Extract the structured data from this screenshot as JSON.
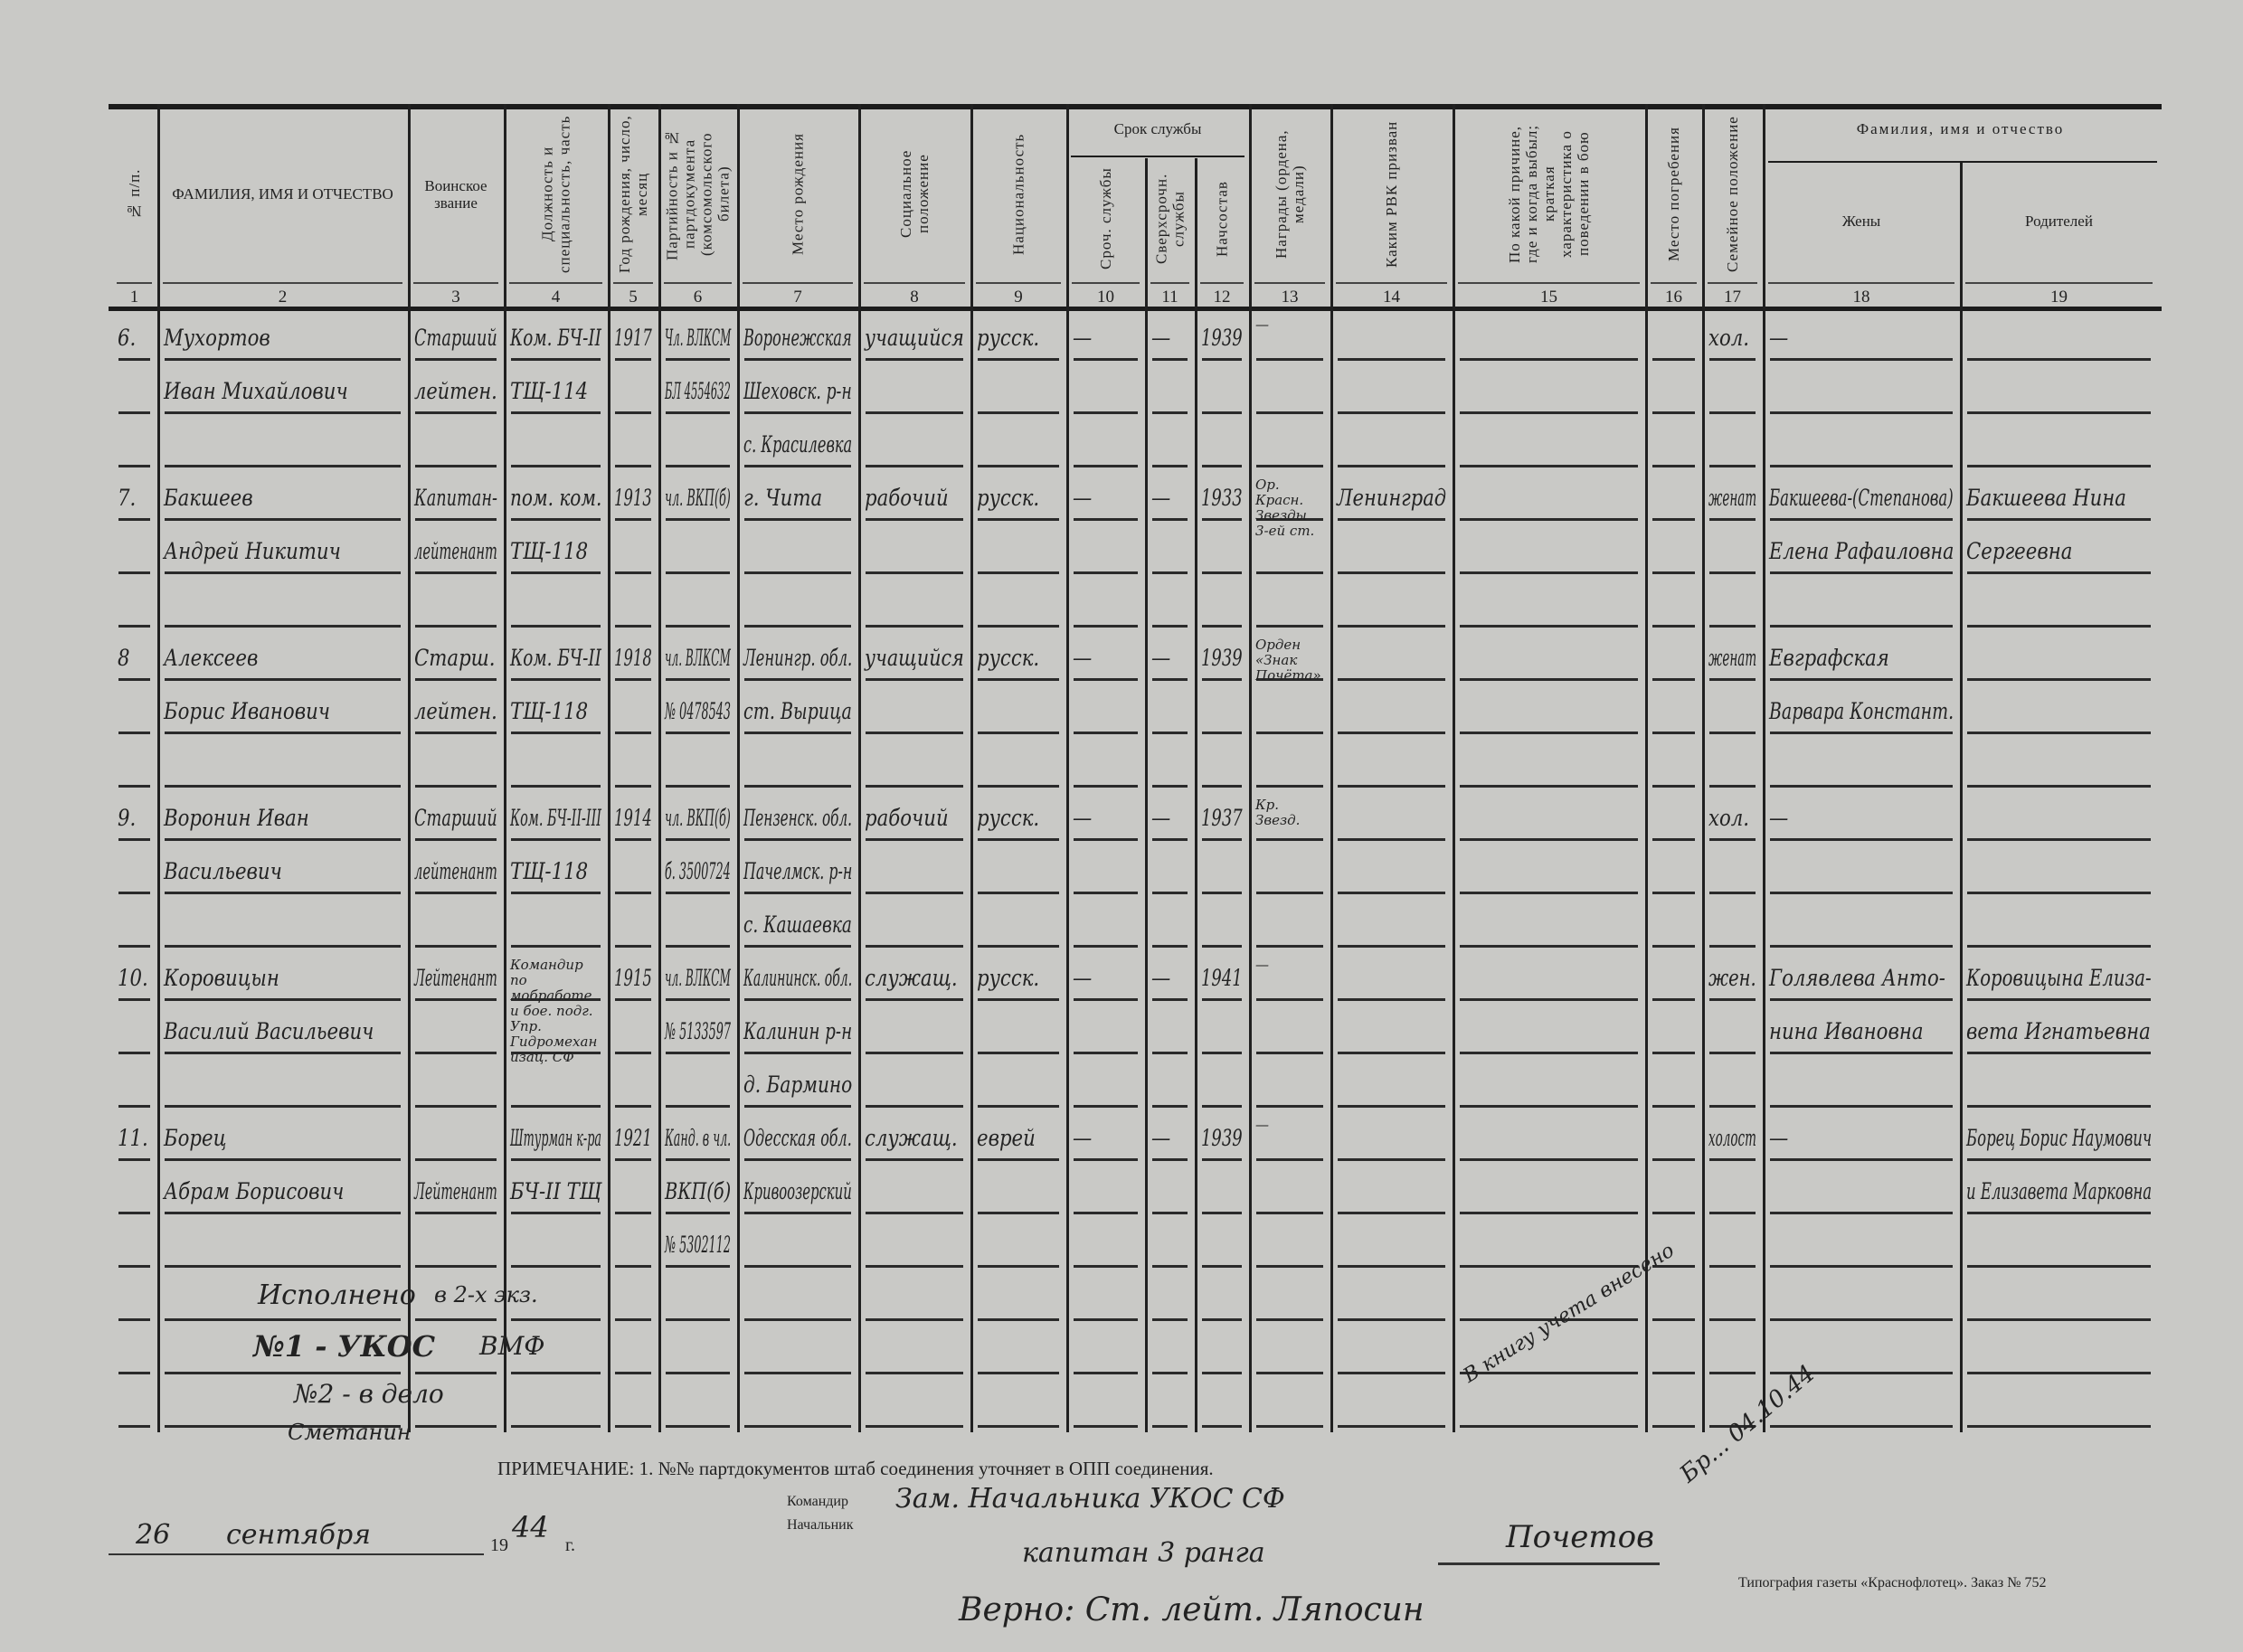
{
  "form": {
    "header_columns": [
      {
        "num": "1",
        "label": "№ п/п.",
        "vertical": true
      },
      {
        "num": "2",
        "label": "ФАМИЛИЯ, ИМЯ И ОТЧЕСТВО",
        "vertical": false
      },
      {
        "num": "3",
        "label": "Воинское звание",
        "vertical": false
      },
      {
        "num": "4",
        "label": "Должность и специальность, часть",
        "vertical": true
      },
      {
        "num": "5",
        "label": "Год рождения, число, месяц",
        "vertical": true
      },
      {
        "num": "6",
        "label": "Партийность и № партдокумента (комсомольского билета)",
        "vertical": true
      },
      {
        "num": "7",
        "label": "Место рождения",
        "vertical": true
      },
      {
        "num": "8",
        "label": "Социальное положение",
        "vertical": true
      },
      {
        "num": "9",
        "label": "Национальность",
        "vertical": true
      },
      {
        "num": "10",
        "label": "Сроч. службы",
        "vertical": true
      },
      {
        "num": "11",
        "label": "Сверхсрочн. службы",
        "vertical": true
      },
      {
        "num": "12",
        "label": "Начсостав",
        "vertical": true
      },
      {
        "num": "13",
        "label": "Награды (ордена, медали)",
        "vertical": true
      },
      {
        "num": "14",
        "label": "Каким РВК призван",
        "vertical": true
      },
      {
        "num": "15",
        "label": "По какой причине, где и когда выбыл; краткая характеристика о поведении в бою",
        "vertical": true
      },
      {
        "num": "16",
        "label": "Место погребения",
        "vertical": true
      },
      {
        "num": "17",
        "label": "Семейное положение",
        "vertical": true
      },
      {
        "num": "18",
        "label": "Жены",
        "vertical": false
      },
      {
        "num": "19",
        "label": "Родителей",
        "vertical": false
      }
    ],
    "group_service_term": "Срок службы",
    "group_relatives": "Фамилия, имя и отчество"
  },
  "records": [
    {
      "cells": [
        [
          "6."
        ],
        [
          "Мухортов",
          "Иван Михайлович"
        ],
        [
          "Старший",
          "лейтен."
        ],
        [
          "Ком. БЧ-II",
          "ТЩ-114"
        ],
        [
          "1917"
        ],
        [
          "Чл. ВЛКСМ",
          "БЛ 4554632"
        ],
        [
          "Воронежская",
          "Шеховск. р-н",
          "с. Красилевка"
        ],
        [
          "учащийся"
        ],
        [
          "русск."
        ],
        [
          "—"
        ],
        [
          "—"
        ],
        [
          "1939"
        ],
        [
          "—"
        ],
        [],
        [],
        [],
        [
          "хол."
        ],
        [
          "—"
        ],
        []
      ]
    },
    {
      "cells": [
        [
          "7."
        ],
        [
          "Бакшеев",
          "Андрей Никитич"
        ],
        [
          "Капитан-",
          "лейтенант"
        ],
        [
          "пом. ком.",
          "ТЩ-118"
        ],
        [
          "1913"
        ],
        [
          "чл. ВКП(б)"
        ],
        [
          "г. Чита"
        ],
        [
          "рабочий"
        ],
        [
          "русск."
        ],
        [
          "—"
        ],
        [
          "—"
        ],
        [
          "1933"
        ],
        [
          "Ор. Красн. Звезды 3-ей ст."
        ],
        [
          "Ленинград"
        ],
        [],
        [],
        [
          "женат"
        ],
        [
          "Бакшеева-(Степанова)",
          "Елена Рафаиловна"
        ],
        [
          "Бакшеева Нина",
          "Сергеевна"
        ]
      ]
    },
    {
      "cells": [
        [
          "8"
        ],
        [
          "Алексеев",
          "Борис Иванович"
        ],
        [
          "Старш.",
          "лейтен."
        ],
        [
          "Ком. БЧ-II",
          "ТЩ-118"
        ],
        [
          "1918"
        ],
        [
          "чл. ВЛКСМ",
          "№ 0478543"
        ],
        [
          "Ленингр. обл.",
          "ст. Вырица"
        ],
        [
          "учащийся"
        ],
        [
          "русск."
        ],
        [
          "—"
        ],
        [
          "—"
        ],
        [
          "1939"
        ],
        [
          "Орден «Знак Почёта»"
        ],
        [],
        [],
        [],
        [
          "женат"
        ],
        [
          "Евграфская",
          "Варвара Констант."
        ],
        []
      ]
    },
    {
      "cells": [
        [
          "9."
        ],
        [
          "Воронин Иван",
          "Васильевич"
        ],
        [
          "Старший",
          "лейтенант"
        ],
        [
          "Ком. БЧ-II-III",
          "ТЩ-118"
        ],
        [
          "1914"
        ],
        [
          "чл. ВКП(б)",
          "б. 3500724"
        ],
        [
          "Пензенск. обл.",
          "Пачелмск. р-н",
          "с. Кашаевка"
        ],
        [
          "рабочий"
        ],
        [
          "русск."
        ],
        [
          "—"
        ],
        [
          "—"
        ],
        [
          "1937"
        ],
        [
          "Кр. Звезд."
        ],
        [],
        [],
        [],
        [
          "хол."
        ],
        [
          "—"
        ],
        []
      ]
    },
    {
      "cells": [
        [
          "10."
        ],
        [
          "Коровицын",
          "Василий Васильевич"
        ],
        [
          "Лейтенант"
        ],
        [
          "Командир по мобработе и бое. подг.",
          "Упр. Гидромеханизац.",
          "СФ"
        ],
        [
          "1915"
        ],
        [
          "чл. ВЛКСМ",
          "№ 5133597"
        ],
        [
          "Калининск. обл.",
          "Калинин р-н",
          "д. Бармино"
        ],
        [
          "служащ."
        ],
        [
          "русск."
        ],
        [
          "—"
        ],
        [
          "—"
        ],
        [
          "1941"
        ],
        [
          "—"
        ],
        [],
        [],
        [],
        [
          "жен."
        ],
        [
          "Голявлева Анто-",
          "нина Ивановна"
        ],
        [
          "Коровицына Елиза-",
          "вета Игнатьевна"
        ]
      ]
    },
    {
      "cells": [
        [
          "11."
        ],
        [
          "Борец",
          "Абрам Борисович"
        ],
        [
          "",
          "Лейтенант"
        ],
        [
          "Штурман к-ра",
          "БЧ-II ТЩ"
        ],
        [
          "1921"
        ],
        [
          "Канд. в чл.",
          "ВКП(б)",
          "№ 5302112"
        ],
        [
          "Одесская обл.",
          "Кривоозерский"
        ],
        [
          "служащ."
        ],
        [
          "еврей"
        ],
        [
          "—"
        ],
        [
          "—"
        ],
        [
          "1939"
        ],
        [
          "—"
        ],
        [],
        [],
        [],
        [
          "холост"
        ],
        [
          "—"
        ],
        [
          "Борец Борис Наумович",
          "и Елизавета Марковна"
        ]
      ]
    }
  ],
  "footer": {
    "executed": "Исполнено",
    "copies": "в 2-х экз.",
    "copy1": "№1 - УКОС",
    "copy1_org": "ВМФ",
    "copy2": "№2 - в дело",
    "executor_signature": "Сметанин",
    "note": "ПРИМЕЧАНИЕ: 1. №№ партдокументов штаб соединения уточняет в ОПП соединения.",
    "date_day": "26",
    "date_month": "сентября",
    "date_year_prefix": "19",
    "date_year_suffix": "44",
    "date_g": "г.",
    "printed_commander": "Командир",
    "printed_chief": "Начальник",
    "hand_title": "Зам. Начальника УКОС СФ",
    "hand_rank": "капитан 3 ранга",
    "signature": "Почетов",
    "certified": "Верно: Ст. лейт. Ляпосин",
    "ledger_note": "В книгу учета внесено",
    "ledger_note2": "Бр... 04.10.44",
    "printer": "Типография газеты «Краснофлотец». Заказ № 752"
  }
}
